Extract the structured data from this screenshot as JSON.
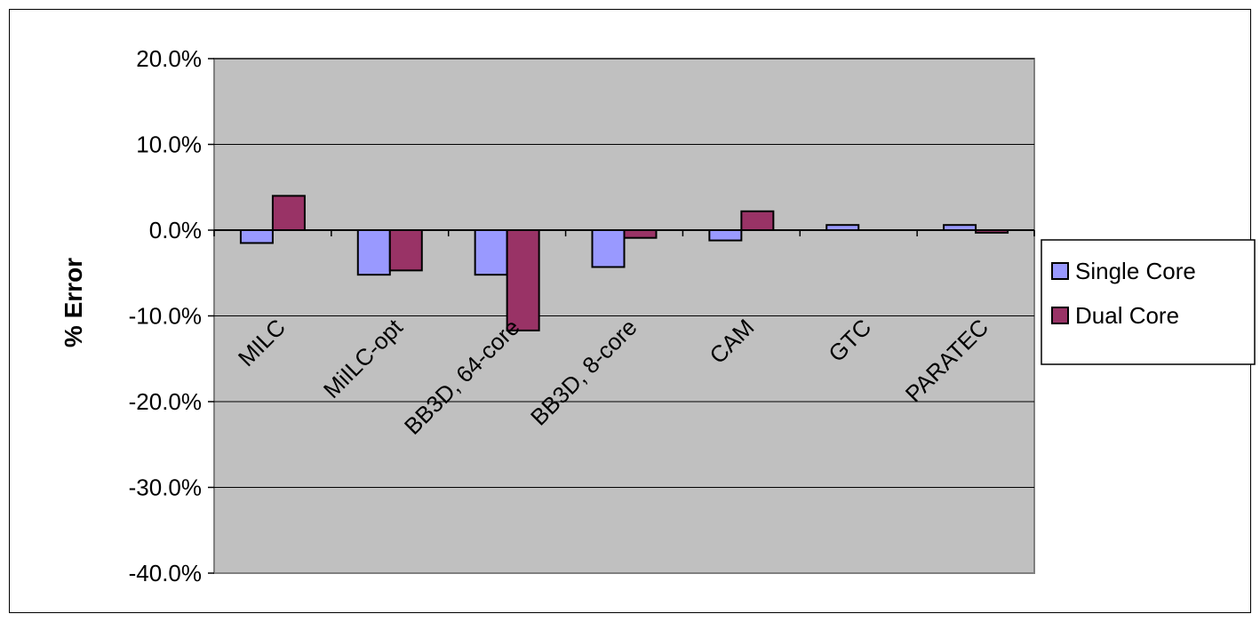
{
  "chart_data": {
    "type": "bar",
    "title": "",
    "xlabel": "",
    "ylabel": "% Error",
    "ylim": [
      -40.0,
      20.0
    ],
    "yticks": [
      "20.0%",
      "10.0%",
      "0.0%",
      "-10.0%",
      "-20.0%",
      "-30.0%",
      "-40.0%"
    ],
    "ytick_values": [
      20,
      10,
      0,
      -10,
      -20,
      -30,
      -40
    ],
    "categories": [
      "MILC",
      "MiILC-opt",
      "BB3D, 64-core",
      "BB3D, 8-core",
      "CAM",
      "GTC",
      "PARATEC"
    ],
    "series": [
      {
        "name": "Single Core",
        "color": "#9999ff",
        "values": [
          -1.5,
          -5.2,
          -5.2,
          -4.3,
          -1.2,
          0.6,
          0.6
        ]
      },
      {
        "name": "Dual Core",
        "color": "#993366",
        "values": [
          4.0,
          -4.7,
          -11.7,
          -0.9,
          2.2,
          0.0,
          -0.3
        ]
      }
    ],
    "grid": true,
    "plot_background": "#c0c0c0",
    "legend_position": "right"
  }
}
